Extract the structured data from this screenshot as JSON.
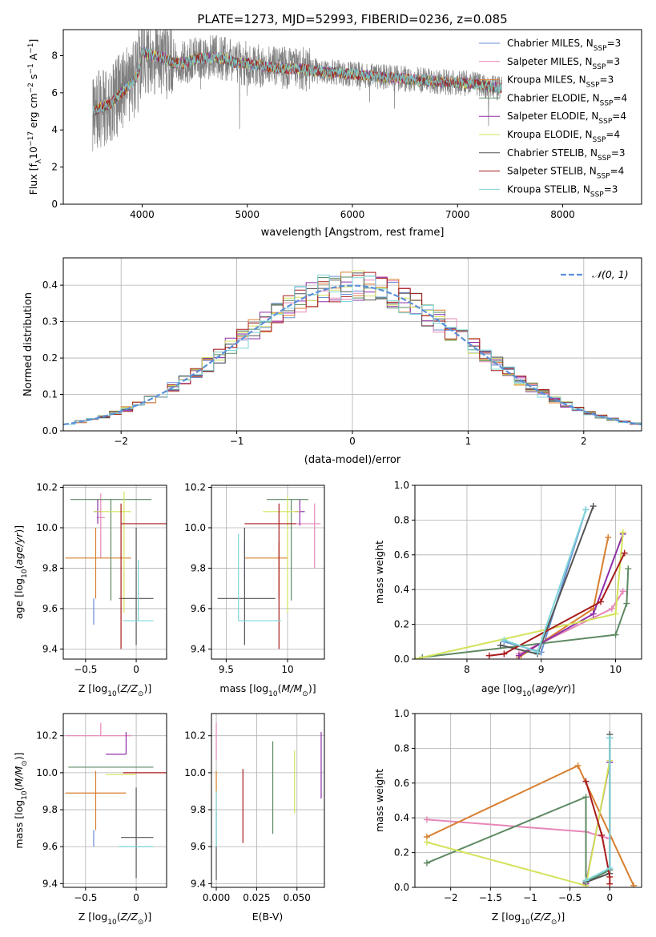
{
  "title": "PLATE=1273, MJD=52993, FIBERID=0236, z=0.085",
  "colors": {
    "Chabrier MILES": "#6b8fd6",
    "Salpeter MILES": "#e687b8",
    "Kroupa MILES": "#d87e2e",
    "Chabrier ELODIE": "#5e8a63",
    "Salpeter ELODIE": "#8e2fa8",
    "Kroupa ELODIE": "#d4e35a",
    "Chabrier STELIB": "#555555",
    "Salpeter STELIB": "#a81c1c",
    "Kroupa STELIB": "#7fd6d9",
    "data": "#808080"
  },
  "chart_data": [
    {
      "type": "line",
      "title": "PLATE=1273, MJD=52993, FIBERID=0236, z=0.085",
      "xlabel": "wavelength [Angstrom, rest frame]",
      "ylabel": "Flux [fλ10⁻¹⁷ erg cm⁻² s⁻¹ A⁻¹]",
      "xlim": [
        3250,
        8750
      ],
      "ylim": [
        0,
        9.4
      ],
      "xticks": [
        4000,
        5000,
        6000,
        7000,
        8000
      ],
      "yticks": [
        0,
        2,
        4,
        6,
        8
      ],
      "legend_position": "right",
      "legend": [
        {
          "label": "Chabrier MILES, N",
          "sub": "SSP",
          "suffix": "=3",
          "model": "Chabrier MILES"
        },
        {
          "label": "Salpeter MILES, N",
          "sub": "SSP",
          "suffix": "=3",
          "model": "Salpeter MILES"
        },
        {
          "label": "Kroupa MILES, N",
          "sub": "SSP",
          "suffix": "=3",
          "model": "Kroupa MILES"
        },
        {
          "label": "Chabrier ELODIE, N",
          "sub": "SSP",
          "suffix": "=4",
          "model": "Chabrier ELODIE"
        },
        {
          "label": "Salpeter ELODIE, N",
          "sub": "SSP",
          "suffix": "=4",
          "model": "Salpeter ELODIE"
        },
        {
          "label": "Kroupa ELODIE, N",
          "sub": "SSP",
          "suffix": "=4",
          "model": "Kroupa ELODIE"
        },
        {
          "label": "Chabrier STELIB, N",
          "sub": "SSP",
          "suffix": "=3",
          "model": "Chabrier STELIB"
        },
        {
          "label": "Salpeter STELIB, N",
          "sub": "SSP",
          "suffix": "=4",
          "model": "Salpeter STELIB"
        },
        {
          "label": "Kroupa STELIB, N",
          "sub": "SSP",
          "suffix": "=3",
          "model": "Kroupa STELIB"
        }
      ],
      "continuum": {
        "x": [
          3530,
          3600,
          3700,
          3800,
          3900,
          3960,
          4000,
          4100,
          4200,
          4300,
          4400,
          4500,
          4600,
          4700,
          4800,
          4900,
          5000,
          5100,
          5200,
          5300,
          5400,
          5500,
          5600,
          5800,
          6000,
          6200,
          6400,
          6600,
          6800,
          7000,
          7200,
          7300,
          7400,
          7500,
          7600,
          7800,
          8000,
          8200,
          8400
        ],
        "y": [
          5.0,
          5.2,
          5.4,
          6.0,
          6.5,
          7.0,
          8.2,
          8.0,
          7.9,
          7.6,
          7.6,
          7.8,
          7.9,
          7.9,
          7.8,
          7.6,
          7.6,
          7.5,
          7.4,
          7.3,
          7.3,
          7.3,
          7.2,
          7.1,
          7.0,
          6.9,
          6.8,
          6.7,
          6.6,
          6.55,
          6.45,
          6.35,
          6.25,
          6.2,
          6.1,
          6.0,
          5.9,
          5.7,
          5.5
        ]
      },
      "data_range": [
        3530,
        7420
      ]
    },
    {
      "type": "histogram",
      "xlabel": "(data-model)/error",
      "ylabel": "Normed distribution",
      "xlim": [
        -2.5,
        2.5
      ],
      "ylim": [
        0,
        0.475
      ],
      "xticks": [
        -2,
        -1,
        0,
        1,
        2
      ],
      "yticks": [
        0.0,
        0.1,
        0.2,
        0.3,
        0.4
      ],
      "legend_position": "top-right",
      "reference_curve": {
        "label": "𝒩(0, 1)",
        "mean": 0,
        "sigma": 1,
        "color": "#5b8fd9"
      },
      "bin_width": 0.1
    },
    {
      "type": "errorbar",
      "xlabel": "Z [log10(Z/Z⊙)]",
      "ylabel": "age [log10(age/yr)]",
      "xlim": [
        -0.72,
        0.3
      ],
      "ylim": [
        9.35,
        10.21
      ],
      "xticks": [
        -0.5,
        0.0
      ],
      "yticks": [
        9.4,
        9.6,
        9.8,
        10.0,
        10.2
      ],
      "points": [
        {
          "model": "Chabrier MILES",
          "x": -0.42,
          "xerr": [
            0.0,
            0.0
          ],
          "y": 9.58,
          "yerr": [
            0.06,
            0.07
          ]
        },
        {
          "model": "Salpeter MILES",
          "x": -0.35,
          "xerr": [
            0.04,
            0.04
          ],
          "y": 10.05,
          "yerr": [
            0.2,
            0.12
          ]
        },
        {
          "model": "Kroupa MILES",
          "x": -0.4,
          "xerr": [
            0.3,
            0.35
          ],
          "y": 9.85,
          "yerr": [
            0.2,
            0.15
          ]
        },
        {
          "model": "Chabrier ELODIE",
          "x": -0.25,
          "xerr": [
            0.4,
            0.4
          ],
          "y": 10.14,
          "yerr": [
            0.5,
            0.0
          ]
        },
        {
          "model": "Salpeter ELODIE",
          "x": -0.38,
          "xerr": [
            0.04,
            0.04
          ],
          "y": 10.08,
          "yerr": [
            0.06,
            0.06
          ]
        },
        {
          "model": "Kroupa ELODIE",
          "x": -0.12,
          "xerr": [
            0.3,
            0.07
          ],
          "y": 10.08,
          "yerr": [
            0.5,
            0.1
          ]
        },
        {
          "model": "Chabrier STELIB",
          "x": 0.0,
          "xerr": [
            0.17,
            0.17
          ],
          "y": 9.65,
          "yerr": [
            0.23,
            0.35
          ]
        },
        {
          "model": "Salpeter STELIB",
          "x": -0.15,
          "xerr": [
            0.0,
            0.45
          ],
          "y": 10.02,
          "yerr": [
            0.62,
            0.1
          ]
        },
        {
          "model": "Kroupa STELIB",
          "x": 0.02,
          "xerr": [
            0.15,
            0.15
          ],
          "y": 9.54,
          "yerr": [
            0.0,
            0.3
          ]
        }
      ]
    },
    {
      "type": "errorbar",
      "xlabel": "mass [log10(M/M⊙)]",
      "ylabel": "",
      "xlim": [
        9.38,
        10.3
      ],
      "ylim": [
        9.35,
        10.21
      ],
      "xticks": [
        9.5,
        10.0
      ],
      "yticks": [
        9.4,
        9.6,
        9.8,
        10.0,
        10.2
      ],
      "points": [
        {
          "model": "Chabrier MILES",
          "x": 9.65,
          "xerr": [
            0.0,
            0.0
          ],
          "y": 9.85,
          "yerr": [
            0.1,
            0.08
          ]
        },
        {
          "model": "Salpeter MILES",
          "x": 10.22,
          "xerr": [
            0.22,
            0.05
          ],
          "y": 10.02,
          "yerr": [
            0.22,
            0.1
          ]
        },
        {
          "model": "Kroupa MILES",
          "x": 9.93,
          "xerr": [
            0.28,
            0.07
          ],
          "y": 9.85,
          "yerr": [
            0.2,
            0.08
          ]
        },
        {
          "model": "Chabrier ELODIE",
          "x": 10.03,
          "xerr": [
            0.2,
            0.14
          ],
          "y": 10.14,
          "yerr": [
            0.5,
            0.0
          ]
        },
        {
          "model": "Salpeter ELODIE",
          "x": 10.1,
          "xerr": [
            0.04,
            0.04
          ],
          "y": 10.08,
          "yerr": [
            0.07,
            0.06
          ]
        },
        {
          "model": "Kroupa ELODIE",
          "x": 10.0,
          "xerr": [
            0.2,
            0.1
          ],
          "y": 10.08,
          "yerr": [
            0.5,
            0.08
          ]
        },
        {
          "model": "Chabrier STELIB",
          "x": 9.65,
          "xerr": [
            0.22,
            0.25
          ],
          "y": 9.65,
          "yerr": [
            0.23,
            0.35
          ]
        },
        {
          "model": "Salpeter STELIB",
          "x": 9.93,
          "xerr": [
            0.28,
            0.14
          ],
          "y": 10.02,
          "yerr": [
            0.62,
            0.1
          ]
        },
        {
          "model": "Kroupa STELIB",
          "x": 9.6,
          "xerr": [
            0.0,
            0.35
          ],
          "y": 9.54,
          "yerr": [
            0.0,
            0.43
          ]
        }
      ]
    },
    {
      "type": "line",
      "xlabel": "age [log10(age/yr)]",
      "ylabel": "mass weight",
      "xlim": [
        7.3,
        10.35
      ],
      "ylim": [
        0,
        1
      ],
      "xticks": [
        8,
        9,
        10
      ],
      "yticks": [
        0.0,
        0.2,
        0.4,
        0.6,
        0.8,
        1.0
      ],
      "series": [
        {
          "model": "Chabrier MILES",
          "x": [
            8.5,
            9.0,
            9.6
          ],
          "y": [
            0.1,
            0.04,
            0.86
          ]
        },
        {
          "model": "Salpeter MILES",
          "x": [
            8.7,
            9.95,
            10.1
          ],
          "y": [
            0.03,
            0.29,
            0.39
          ]
        },
        {
          "model": "Kroupa MILES",
          "x": [
            8.7,
            9.7,
            9.9
          ],
          "y": [
            0.01,
            0.29,
            0.7
          ]
        },
        {
          "model": "Chabrier ELODIE",
          "x": [
            7.4,
            10.0,
            10.15,
            10.17
          ],
          "y": [
            0.01,
            0.14,
            0.32,
            0.52
          ]
        },
        {
          "model": "Salpeter ELODIE",
          "x": [
            8.7,
            9.7,
            10.1
          ],
          "y": [
            0.02,
            0.26,
            0.72
          ]
        },
        {
          "model": "Kroupa ELODIE",
          "x": [
            7.3,
            10.0,
            10.1
          ],
          "y": [
            0.0,
            0.26,
            0.73
          ]
        },
        {
          "model": "Chabrier STELIB",
          "x": [
            8.45,
            8.95,
            9.7
          ],
          "y": [
            0.08,
            0.03,
            0.88
          ]
        },
        {
          "model": "Salpeter STELIB",
          "x": [
            8.3,
            8.5,
            9.8,
            10.12
          ],
          "y": [
            0.02,
            0.03,
            0.33,
            0.61
          ]
        },
        {
          "model": "Kroupa STELIB",
          "x": [
            8.5,
            8.95,
            9.6
          ],
          "y": [
            0.11,
            0.04,
            0.86
          ]
        }
      ]
    },
    {
      "type": "errorbar",
      "xlabel": "Z [log10(Z/Z⊙)]",
      "ylabel": "mass [log10(M/M⊙)]",
      "xlim": [
        -0.72,
        0.3
      ],
      "ylim": [
        9.38,
        10.32
      ],
      "xticks": [
        -0.5,
        0.0
      ],
      "yticks": [
        9.4,
        9.6,
        9.8,
        10.0,
        10.2
      ],
      "points": [
        {
          "model": "Chabrier MILES",
          "x": -0.42,
          "xerr": [
            0.0,
            0.0
          ],
          "y": 9.65,
          "yerr": [
            0.05,
            0.04
          ]
        },
        {
          "model": "Salpeter MILES",
          "x": -0.35,
          "xerr": [
            0.35,
            0.3
          ],
          "y": 10.2,
          "yerr": [
            0.0,
            0.07
          ]
        },
        {
          "model": "Kroupa MILES",
          "x": -0.4,
          "xerr": [
            0.3,
            0.3
          ],
          "y": 9.89,
          "yerr": [
            0.2,
            0.12
          ]
        },
        {
          "model": "Chabrier ELODIE",
          "x": -0.25,
          "xerr": [
            0.42,
            0.42
          ],
          "y": 10.03,
          "yerr": [
            0.0,
            0.0
          ]
        },
        {
          "model": "Salpeter ELODIE",
          "x": -0.1,
          "xerr": [
            0.2,
            0.0
          ],
          "y": 10.1,
          "yerr": [
            0.0,
            0.12
          ]
        },
        {
          "model": "Kroupa ELODIE",
          "x": -0.1,
          "xerr": [
            0.2,
            0.1
          ],
          "y": 9.99,
          "yerr": [
            0.0,
            0.0
          ]
        },
        {
          "model": "Chabrier STELIB",
          "x": 0.0,
          "xerr": [
            0.15,
            0.17
          ],
          "y": 9.65,
          "yerr": [
            0.22,
            0.27
          ]
        },
        {
          "model": "Salpeter STELIB",
          "x": -0.13,
          "xerr": [
            0.0,
            0.45
          ],
          "y": 10.0,
          "yerr": [
            0.0,
            0.0
          ]
        },
        {
          "model": "Kroupa STELIB",
          "x": 0.0,
          "xerr": [
            0.17,
            0.17
          ],
          "y": 9.6,
          "yerr": [
            0.0,
            0.0
          ]
        }
      ]
    },
    {
      "type": "errorbar",
      "xlabel": "E(B-V)",
      "ylabel": "",
      "xlim": [
        -0.003,
        0.067
      ],
      "ylim": [
        9.38,
        10.32
      ],
      "xticks": [
        0.0,
        0.025,
        0.05
      ],
      "xticklabels": [
        "0.000",
        "0.025",
        "0.050"
      ],
      "yticks": [
        9.4,
        9.6,
        9.8,
        10.0,
        10.2
      ],
      "points": [
        {
          "model": "Chabrier MILES",
          "x": 0.0,
          "y": 9.65,
          "yerr": [
            0.0,
            0.0
          ]
        },
        {
          "model": "Salpeter MILES",
          "x": 0.0,
          "y": 10.17,
          "yerr": [
            0.1,
            0.1
          ]
        },
        {
          "model": "Kroupa MILES",
          "x": 0.0,
          "y": 9.89,
          "yerr": [
            0.12,
            0.12
          ]
        },
        {
          "model": "Chabrier ELODIE",
          "x": 0.035,
          "y": 9.92,
          "yerr": [
            0.25,
            0.25
          ]
        },
        {
          "model": "Salpeter ELODIE",
          "x": 0.065,
          "y": 10.04,
          "yerr": [
            0.18,
            0.18
          ]
        },
        {
          "model": "Kroupa ELODIE",
          "x": 0.0485,
          "y": 9.95,
          "yerr": [
            0.17,
            0.17
          ]
        },
        {
          "model": "Chabrier STELIB",
          "x": 0.0,
          "y": 9.6,
          "yerr": [
            0.18,
            0.18
          ]
        },
        {
          "model": "Salpeter STELIB",
          "x": 0.0165,
          "y": 9.82,
          "yerr": [
            0.2,
            0.2
          ]
        },
        {
          "model": "Kroupa STELIB",
          "x": 0.0,
          "y": 9.75,
          "yerr": [
            0.15,
            0.15
          ]
        }
      ]
    },
    {
      "type": "line",
      "xlabel": "Z [log10(Z/Z⊙)]",
      "ylabel": "mass weight",
      "xlim": [
        -2.45,
        0.4
      ],
      "ylim": [
        0,
        1
      ],
      "xticks": [
        -2.0,
        -1.5,
        -1.0,
        -0.5,
        0.0
      ],
      "yticks": [
        0.0,
        0.2,
        0.4,
        0.6,
        0.8,
        1.0
      ],
      "series": [
        {
          "model": "Chabrier MILES",
          "x": [
            -0.3,
            0.0,
            0.0
          ],
          "y": [
            0.03,
            0.1,
            0.86
          ]
        },
        {
          "model": "Salpeter MILES",
          "x": [
            -2.3,
            -0.3,
            0.0
          ],
          "y": [
            0.39,
            0.32,
            0.28
          ]
        },
        {
          "model": "Kroupa MILES",
          "x": [
            -2.3,
            -0.4,
            0.3
          ],
          "y": [
            0.29,
            0.7,
            0.01
          ]
        },
        {
          "model": "Chabrier ELODIE",
          "x": [
            -2.3,
            -0.3,
            -0.3,
            0.0
          ],
          "y": [
            0.14,
            0.52,
            0.03,
            0.1
          ]
        },
        {
          "model": "Salpeter ELODIE",
          "x": [
            -0.3,
            0.0
          ],
          "y": [
            0.02,
            0.72
          ]
        },
        {
          "model": "Kroupa ELODIE",
          "x": [
            -2.3,
            -0.3,
            0.0
          ],
          "y": [
            0.26,
            0.01,
            0.73
          ]
        },
        {
          "model": "Chabrier STELIB",
          "x": [
            -0.3,
            0.0,
            0.0
          ],
          "y": [
            0.03,
            0.08,
            0.88
          ]
        },
        {
          "model": "Salpeter STELIB",
          "x": [
            -0.3,
            -0.1,
            0.0,
            0.0
          ],
          "y": [
            0.61,
            0.3,
            0.06,
            0.02
          ]
        },
        {
          "model": "Kroupa STELIB",
          "x": [
            -0.3,
            0.0,
            0.0
          ],
          "y": [
            0.04,
            0.11,
            0.86
          ]
        }
      ]
    }
  ]
}
